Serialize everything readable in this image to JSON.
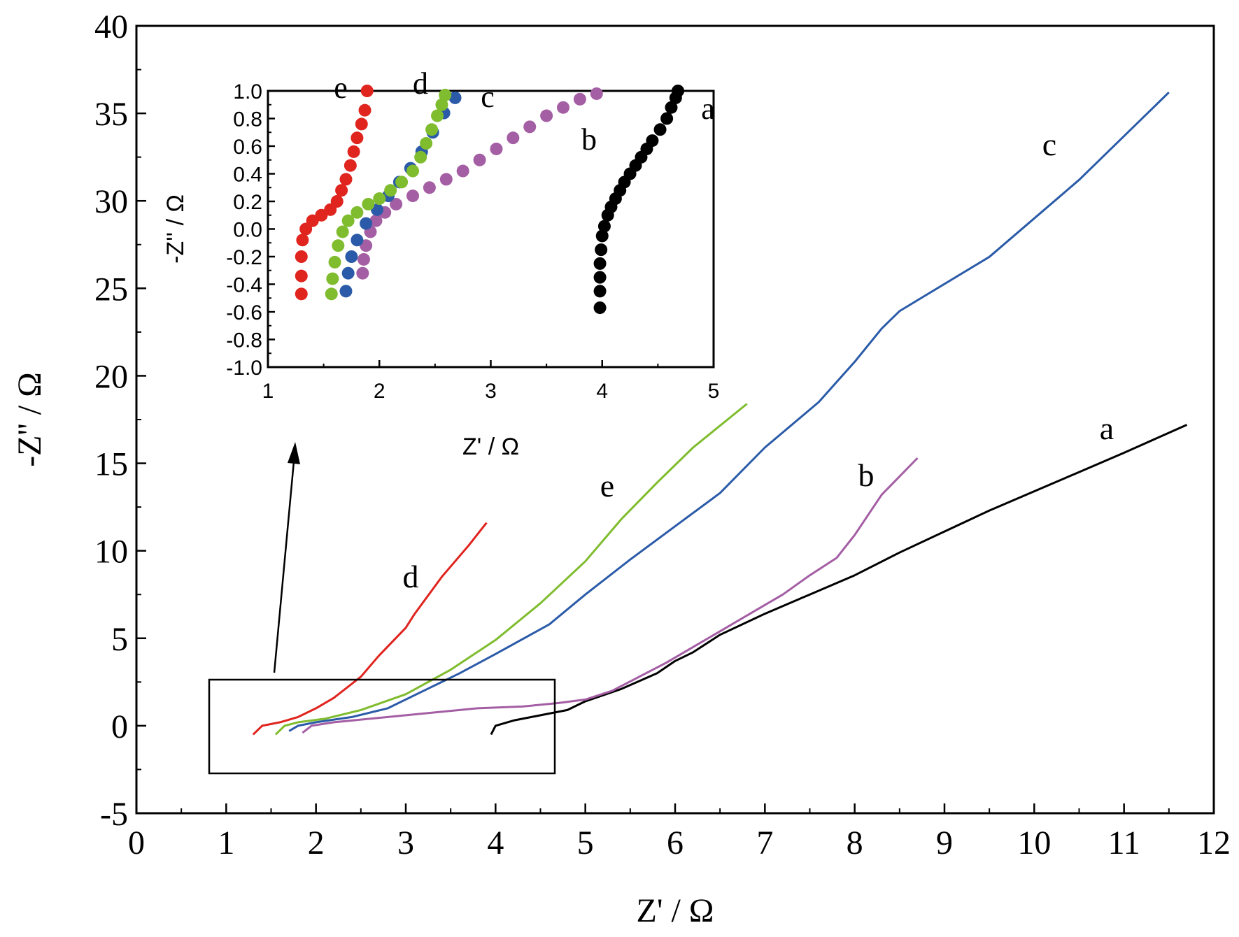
{
  "chart_data": [
    {
      "type": "line",
      "xlabel": "Z' / Ω",
      "ylabel": "-Z'' / Ω",
      "xlim": [
        0,
        12
      ],
      "ylim": [
        -5,
        40
      ],
      "x_ticks": [
        "0",
        "1",
        "2",
        "3",
        "4",
        "5",
        "6",
        "7",
        "8",
        "9",
        "10",
        "11",
        "12"
      ],
      "y_ticks": [
        "-5",
        "0",
        "5",
        "10",
        "15",
        "20",
        "25",
        "30",
        "35",
        "40"
      ],
      "series": [
        {
          "name": "a",
          "color": "#000000",
          "x": [
            3.95,
            4.0,
            4.2,
            4.4,
            4.6,
            4.8,
            5.0,
            5.4,
            5.8,
            6.0,
            6.2,
            6.5,
            7.0,
            7.5,
            8.0,
            8.5,
            9.0,
            9.5,
            10.0,
            10.5,
            11.0,
            11.7
          ],
          "y": [
            -0.5,
            0.0,
            0.3,
            0.5,
            0.7,
            0.9,
            1.4,
            2.1,
            3.0,
            3.7,
            4.2,
            5.2,
            6.4,
            7.5,
            8.6,
            9.9,
            11.1,
            12.3,
            13.4,
            14.5,
            15.6,
            17.2
          ]
        },
        {
          "name": "b",
          "color": "#a45ea4",
          "x": [
            1.85,
            1.95,
            2.2,
            2.6,
            3.0,
            3.4,
            3.8,
            4.3,
            4.7,
            5.0,
            5.3,
            5.6,
            5.9,
            6.2,
            6.5,
            6.9,
            7.2,
            7.5,
            7.8,
            8.0,
            8.3,
            8.7
          ],
          "y": [
            -0.4,
            0.0,
            0.2,
            0.4,
            0.6,
            0.8,
            1.0,
            1.1,
            1.3,
            1.5,
            2.0,
            2.8,
            3.6,
            4.5,
            5.4,
            6.6,
            7.5,
            8.6,
            9.6,
            10.9,
            13.2,
            15.3
          ]
        },
        {
          "name": "c",
          "color": "#2b5ba8",
          "x": [
            1.7,
            1.8,
            2.0,
            2.4,
            2.8,
            3.2,
            3.6,
            4.0,
            4.6,
            5.0,
            5.5,
            6.0,
            6.5,
            7.0,
            7.6,
            8.0,
            8.3,
            8.5,
            9.5,
            10.5,
            11.5
          ],
          "y": [
            -0.3,
            0.0,
            0.2,
            0.5,
            1.0,
            2.0,
            3.0,
            4.1,
            5.8,
            7.5,
            9.5,
            11.4,
            13.3,
            15.9,
            18.5,
            20.8,
            22.7,
            23.7,
            26.8,
            31.2,
            36.2
          ]
        },
        {
          "name": "d",
          "color": "#e0241e",
          "x": [
            1.3,
            1.4,
            1.6,
            1.8,
            2.0,
            2.2,
            2.5,
            2.7,
            3.0,
            3.1,
            3.4,
            3.7,
            3.9
          ],
          "y": [
            -0.5,
            0.0,
            0.2,
            0.5,
            1.0,
            1.6,
            2.8,
            4.0,
            5.6,
            6.4,
            8.5,
            10.3,
            11.6
          ]
        },
        {
          "name": "e",
          "color": "#7fbc2e",
          "x": [
            1.55,
            1.65,
            1.8,
            2.1,
            2.5,
            3.0,
            3.5,
            4.0,
            4.5,
            5.0,
            5.4,
            5.8,
            6.2,
            6.8
          ],
          "y": [
            -0.5,
            0.0,
            0.2,
            0.4,
            0.9,
            1.8,
            3.2,
            4.9,
            7.0,
            9.4,
            11.8,
            13.9,
            15.9,
            18.4
          ]
        }
      ]
    },
    {
      "type": "scatter",
      "xlabel": "Z' / Ω",
      "ylabel": "-Z'' / Ω",
      "xlim": [
        1,
        5
      ],
      "ylim": [
        -1.0,
        1.0
      ],
      "x_ticks": [
        "1",
        "2",
        "3",
        "4",
        "5"
      ],
      "y_ticks": [
        "1.0",
        "0.8",
        "0.6",
        "0.4",
        "0.2",
        "0.0",
        "-0.2",
        "-0.4",
        "-0.6",
        "-0.8",
        "-1.0"
      ],
      "series": [
        {
          "name": "a",
          "color": "#000000",
          "x": [
            3.98,
            3.98,
            3.98,
            3.98,
            3.99,
            4.0,
            4.02,
            4.05,
            4.08,
            4.12,
            4.16,
            4.2,
            4.25,
            4.3,
            4.35,
            4.4,
            4.45,
            4.52,
            4.58,
            4.62,
            4.66,
            4.68
          ],
          "y": [
            -0.57,
            -0.45,
            -0.35,
            -0.25,
            -0.15,
            -0.05,
            0.02,
            0.1,
            0.16,
            0.22,
            0.28,
            0.34,
            0.4,
            0.46,
            0.52,
            0.58,
            0.64,
            0.72,
            0.8,
            0.88,
            0.95,
            1.0
          ]
        },
        {
          "name": "b",
          "color": "#a45ea4",
          "x": [
            1.85,
            1.86,
            1.88,
            1.92,
            1.97,
            2.05,
            2.15,
            2.3,
            2.45,
            2.6,
            2.75,
            2.9,
            3.05,
            3.2,
            3.35,
            3.5,
            3.65,
            3.8,
            3.95
          ],
          "y": [
            -0.32,
            -0.22,
            -0.12,
            -0.02,
            0.06,
            0.12,
            0.18,
            0.24,
            0.3,
            0.36,
            0.42,
            0.5,
            0.58,
            0.66,
            0.74,
            0.82,
            0.88,
            0.94,
            0.98
          ]
        },
        {
          "name": "c",
          "color": "#2b5ba8",
          "x": [
            1.7,
            1.72,
            1.75,
            1.8,
            1.88,
            1.98,
            2.08,
            2.18,
            2.28,
            2.38,
            2.48,
            2.58,
            2.68
          ],
          "y": [
            -0.45,
            -0.32,
            -0.2,
            -0.08,
            0.04,
            0.14,
            0.24,
            0.34,
            0.44,
            0.56,
            0.7,
            0.84,
            0.95
          ]
        },
        {
          "name": "d",
          "color": "#7fbc2e",
          "x": [
            1.57,
            1.58,
            1.6,
            1.63,
            1.67,
            1.72,
            1.8,
            1.9,
            2.0,
            2.1,
            2.2,
            2.3,
            2.37,
            2.42,
            2.47,
            2.52,
            2.56,
            2.59
          ],
          "y": [
            -0.47,
            -0.36,
            -0.24,
            -0.12,
            -0.02,
            0.06,
            0.12,
            0.18,
            0.22,
            0.28,
            0.34,
            0.42,
            0.52,
            0.62,
            0.72,
            0.82,
            0.9,
            0.97
          ]
        },
        {
          "name": "e",
          "color": "#e0241e",
          "x": [
            1.3,
            1.3,
            1.3,
            1.31,
            1.34,
            1.4,
            1.48,
            1.56,
            1.62,
            1.66,
            1.7,
            1.74,
            1.77,
            1.8,
            1.84,
            1.87,
            1.89
          ],
          "y": [
            -0.47,
            -0.34,
            -0.2,
            -0.08,
            0.0,
            0.06,
            0.1,
            0.14,
            0.2,
            0.28,
            0.36,
            0.46,
            0.56,
            0.66,
            0.76,
            0.86,
            1.0
          ]
        }
      ]
    }
  ]
}
